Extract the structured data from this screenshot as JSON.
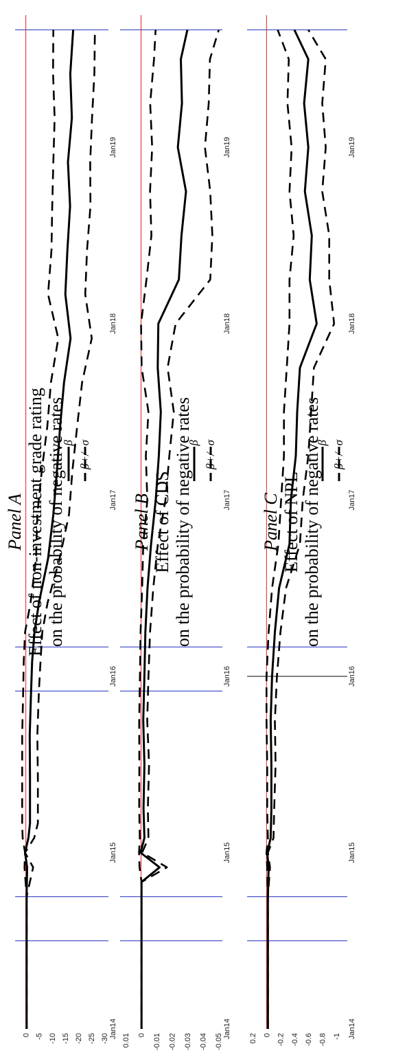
{
  "chart_data": [
    {
      "type": "line",
      "panel_label": "Panel A",
      "title": "Effect of non-investment grade rating",
      "subtitle": "on the probability of negative rates",
      "x_ticks": [
        "Jan14",
        "Jan15",
        "Jan16",
        "Jan17",
        "Jan18",
        "Jan19"
      ],
      "xlim": [
        "2014-01",
        "2019-10"
      ],
      "ylim": [
        -30,
        2
      ],
      "y_ticks": [
        0,
        -5,
        -10,
        -15,
        -20,
        -25,
        -30
      ],
      "y_tick_labels": [
        "0",
        "-5",
        "-10",
        "-15",
        "-20",
        "-25",
        "-30"
      ],
      "vertical_lines": [
        "2014-07",
        "2014-10",
        "2015-12",
        "2016-03",
        "2019-09"
      ],
      "zero_line": 0,
      "legend": [
        "β",
        "β+/- σ"
      ],
      "series": [
        {
          "name": "β",
          "x": [
            "2014-01",
            "2014-07",
            "2014-10",
            "2014-12",
            "2015-01",
            "2015-02",
            "2015-03",
            "2015-06",
            "2015-09",
            "2015-12",
            "2016-02",
            "2016-04",
            "2016-06",
            "2016-09",
            "2016-12",
            "2017-03",
            "2017-06",
            "2017-09",
            "2017-12",
            "2018-03",
            "2018-06",
            "2018-09",
            "2018-12",
            "2019-03",
            "2019-06",
            "2019-09"
          ],
          "y": [
            -0.3,
            -0.3,
            -0.3,
            -0.5,
            0.3,
            -1.0,
            -1.6,
            -1.6,
            -1.5,
            -2.0,
            -2.4,
            -3.3,
            -5.0,
            -8.5,
            -10.5,
            -11.9,
            -13.1,
            -14.6,
            -17.1,
            -15.1,
            -15.9,
            -16.9,
            -16.1,
            -17.6,
            -17.0,
            -18.1
          ]
        },
        {
          "name": "β+σ",
          "x": [
            "2014-01",
            "2014-07",
            "2014-10",
            "2014-12",
            "2015-01",
            "2015-02",
            "2015-03",
            "2015-06",
            "2015-09",
            "2015-12",
            "2016-02",
            "2016-04",
            "2016-06",
            "2016-09",
            "2016-12",
            "2017-03",
            "2017-06",
            "2017-09",
            "2017-12",
            "2018-03",
            "2018-06",
            "2018-09",
            "2018-12",
            "2019-03",
            "2019-06",
            "2019-09"
          ],
          "y": [
            -0.3,
            -0.3,
            -0.3,
            0.5,
            0.3,
            1.2,
            1.4,
            1.4,
            1.4,
            1.0,
            0.8,
            0.3,
            -1.8,
            -3.9,
            -4.4,
            -6.1,
            -8.2,
            -9.6,
            -12.4,
            -8.5,
            -9.8,
            -10.1,
            -10.5,
            -11.0,
            -10.4,
            -10.5
          ]
        },
        {
          "name": "β−σ",
          "x": [
            "2014-01",
            "2014-07",
            "2014-10",
            "2014-12",
            "2015-01",
            "2015-02",
            "2015-03",
            "2015-06",
            "2015-09",
            "2015-12",
            "2016-02",
            "2016-04",
            "2016-06",
            "2016-09",
            "2016-12",
            "2017-03",
            "2017-06",
            "2017-09",
            "2017-12",
            "2018-03",
            "2018-06",
            "2018-09",
            "2018-12",
            "2019-03",
            "2019-06",
            "2019-09"
          ],
          "y": [
            -0.3,
            -0.3,
            -0.3,
            -2.8,
            0.3,
            -3.2,
            -4.6,
            -4.6,
            -4.4,
            -5.0,
            -5.6,
            -6.3,
            -8.3,
            -12.9,
            -16.5,
            -17.8,
            -19.6,
            -21.5,
            -25.2,
            -22.7,
            -23.4,
            -24.7,
            -24.6,
            -25.3,
            -26.2,
            -26.4
          ]
        }
      ]
    },
    {
      "type": "line",
      "panel_label": "Panel B",
      "title": "Effect of CDS",
      "subtitle": "on the probability of negative rates",
      "x_ticks": [
        "Jan14",
        "Jan15",
        "Jan16",
        "Jan17",
        "Jan18",
        "Jan19"
      ],
      "xlim": [
        "2014-01",
        "2019-10"
      ],
      "ylim": [
        -0.05,
        0.01
      ],
      "y_ticks": [
        0.01,
        0,
        -0.01,
        -0.02,
        -0.03,
        -0.04,
        -0.05
      ],
      "y_tick_labels": [
        "0.01",
        "0",
        "-0.01",
        "-0.02",
        "-0.03",
        "-0.04",
        "-0.05"
      ],
      "vertical_lines": [
        "2014-07",
        "2014-10",
        "2015-12",
        "2016-03",
        "2019-09"
      ],
      "zero_line": 0,
      "legend": [
        "β",
        "β+/- σ"
      ],
      "series": [
        {
          "name": "β",
          "x": [
            "2014-01",
            "2014-07",
            "2014-10",
            "2014-11",
            "2014-12",
            "2015-01",
            "2015-02",
            "2015-04",
            "2015-07",
            "2015-10",
            "2016-01",
            "2016-04",
            "2016-07",
            "2016-10",
            "2017-01",
            "2017-04",
            "2017-07",
            "2017-10",
            "2018-01",
            "2018-04",
            "2018-07",
            "2018-10",
            "2019-01",
            "2019-04",
            "2019-07",
            "2019-09"
          ],
          "y": [
            -0.0003,
            -0.0003,
            -0.0003,
            -0.0003,
            -0.012,
            0.0003,
            -0.0022,
            -0.0016,
            -0.0022,
            -0.0014,
            -0.0022,
            -0.0028,
            -0.0042,
            -0.0065,
            -0.0095,
            -0.0115,
            -0.0128,
            -0.0108,
            -0.0112,
            -0.0245,
            -0.0262,
            -0.0291,
            -0.0238,
            -0.0265,
            -0.0258,
            -0.03
          ]
        },
        {
          "name": "β+σ",
          "x": [
            "2014-01",
            "2014-07",
            "2014-10",
            "2014-11",
            "2014-12",
            "2015-01",
            "2015-02",
            "2015-04",
            "2015-07",
            "2015-10",
            "2016-01",
            "2016-04",
            "2016-07",
            "2016-10",
            "2017-01",
            "2017-04",
            "2017-07",
            "2017-10",
            "2018-01",
            "2018-04",
            "2018-07",
            "2018-10",
            "2019-01",
            "2019-04",
            "2019-07",
            "2019-09"
          ],
          "y": [
            -0.0003,
            -0.0003,
            -0.0003,
            -0.0003,
            0.001,
            0.0013,
            0.0008,
            0.0012,
            0.0011,
            0.0012,
            0.0007,
            0.0003,
            -0.0007,
            -0.0014,
            -0.0041,
            -0.0031,
            -0.0048,
            -0.0004,
            0.0,
            -0.0035,
            -0.0067,
            -0.0058,
            -0.0072,
            -0.0059,
            -0.0084,
            -0.0094
          ]
        },
        {
          "name": "β−σ",
          "x": [
            "2014-01",
            "2014-07",
            "2014-10",
            "2014-11",
            "2014-12",
            "2015-01",
            "2015-02",
            "2015-04",
            "2015-07",
            "2015-10",
            "2016-01",
            "2016-04",
            "2016-07",
            "2016-10",
            "2017-01",
            "2017-04",
            "2017-07",
            "2017-10",
            "2018-01",
            "2018-04",
            "2018-07",
            "2018-10",
            "2019-01",
            "2019-04",
            "2019-07",
            "2019-09"
          ],
          "y": [
            -0.0003,
            -0.0003,
            -0.0003,
            -0.0003,
            -0.0168,
            -0.0007,
            -0.0048,
            -0.0044,
            -0.0052,
            -0.004,
            -0.0048,
            -0.0058,
            -0.0079,
            -0.0109,
            -0.0158,
            -0.0183,
            -0.0212,
            -0.0172,
            -0.0224,
            -0.0448,
            -0.0462,
            -0.0448,
            -0.0414,
            -0.0438,
            -0.0446,
            -0.0503
          ]
        }
      ]
    },
    {
      "type": "line",
      "panel_label": "Panel C",
      "title": "Effect of NPL",
      "subtitle": "on the probability of negative rates",
      "x_ticks": [
        "Jan14",
        "Jan15",
        "Jan16",
        "Jan17",
        "Jan18",
        "Jan19"
      ],
      "xlim": [
        "2014-01",
        "2019-10"
      ],
      "ylim": [
        -1.1,
        0.2
      ],
      "y_ticks": [
        0.2,
        0,
        -0.2,
        -0.4,
        -0.6,
        -0.8,
        -1
      ],
      "y_tick_labels": [
        "0.2",
        "0",
        "-0.2",
        "-0.4",
        "-0.6",
        "-0.8",
        "-1"
      ],
      "vertical_lines": [
        "2014-07",
        "2014-10",
        "2016-01",
        "2016-03",
        "2019-09"
      ],
      "zero_line": 0,
      "legend": [
        "β",
        "β+/- σ"
      ],
      "series": [
        {
          "name": "β",
          "x": [
            "2014-01",
            "2014-07",
            "2014-10",
            "2014-12",
            "2015-01",
            "2015-02",
            "2015-04",
            "2015-07",
            "2015-10",
            "2016-01",
            "2016-04",
            "2016-07",
            "2016-10",
            "2017-01",
            "2017-04",
            "2017-07",
            "2017-10",
            "2018-01",
            "2018-04",
            "2018-07",
            "2018-10",
            "2019-01",
            "2019-04",
            "2019-07",
            "2019-09"
          ],
          "y": [
            -0.02,
            -0.02,
            -0.02,
            -0.03,
            -0.01,
            -0.06,
            -0.07,
            -0.07,
            -0.06,
            -0.08,
            -0.12,
            -0.18,
            -0.33,
            -0.35,
            -0.42,
            -0.44,
            -0.48,
            -0.72,
            -0.62,
            -0.65,
            -0.55,
            -0.6,
            -0.54,
            -0.6,
            -0.4
          ]
        },
        {
          "name": "β+σ",
          "x": [
            "2014-01",
            "2014-07",
            "2014-10",
            "2014-12",
            "2015-01",
            "2015-02",
            "2015-04",
            "2015-07",
            "2015-10",
            "2016-01",
            "2016-04",
            "2016-07",
            "2016-10",
            "2017-01",
            "2017-04",
            "2017-07",
            "2017-10",
            "2018-01",
            "2018-04",
            "2018-07",
            "2018-10",
            "2019-01",
            "2019-04",
            "2019-07",
            "2019-09"
          ],
          "y": [
            -0.02,
            -0.02,
            -0.02,
            -0.01,
            0.0,
            -0.02,
            -0.01,
            -0.01,
            0.0,
            0.0,
            -0.03,
            -0.08,
            -0.17,
            -0.21,
            -0.25,
            -0.25,
            -0.29,
            -0.33,
            -0.33,
            -0.39,
            -0.33,
            -0.36,
            -0.3,
            -0.32,
            -0.16
          ]
        },
        {
          "name": "β−σ",
          "x": [
            "2014-01",
            "2014-07",
            "2014-10",
            "2014-12",
            "2015-01",
            "2015-02",
            "2015-04",
            "2015-07",
            "2015-10",
            "2016-01",
            "2016-04",
            "2016-07",
            "2016-10",
            "2017-01",
            "2017-04",
            "2017-07",
            "2017-10",
            "2018-01",
            "2018-04",
            "2018-07",
            "2018-10",
            "2019-01",
            "2019-04",
            "2019-07",
            "2019-09"
          ],
          "y": [
            -0.02,
            -0.02,
            -0.02,
            -0.05,
            -0.02,
            -0.1,
            -0.11,
            -0.13,
            -0.12,
            -0.15,
            -0.2,
            -0.28,
            -0.48,
            -0.52,
            -0.6,
            -0.64,
            -0.68,
            -0.97,
            -0.9,
            -0.9,
            -0.8,
            -0.85,
            -0.8,
            -0.85,
            -0.6
          ]
        }
      ]
    }
  ]
}
